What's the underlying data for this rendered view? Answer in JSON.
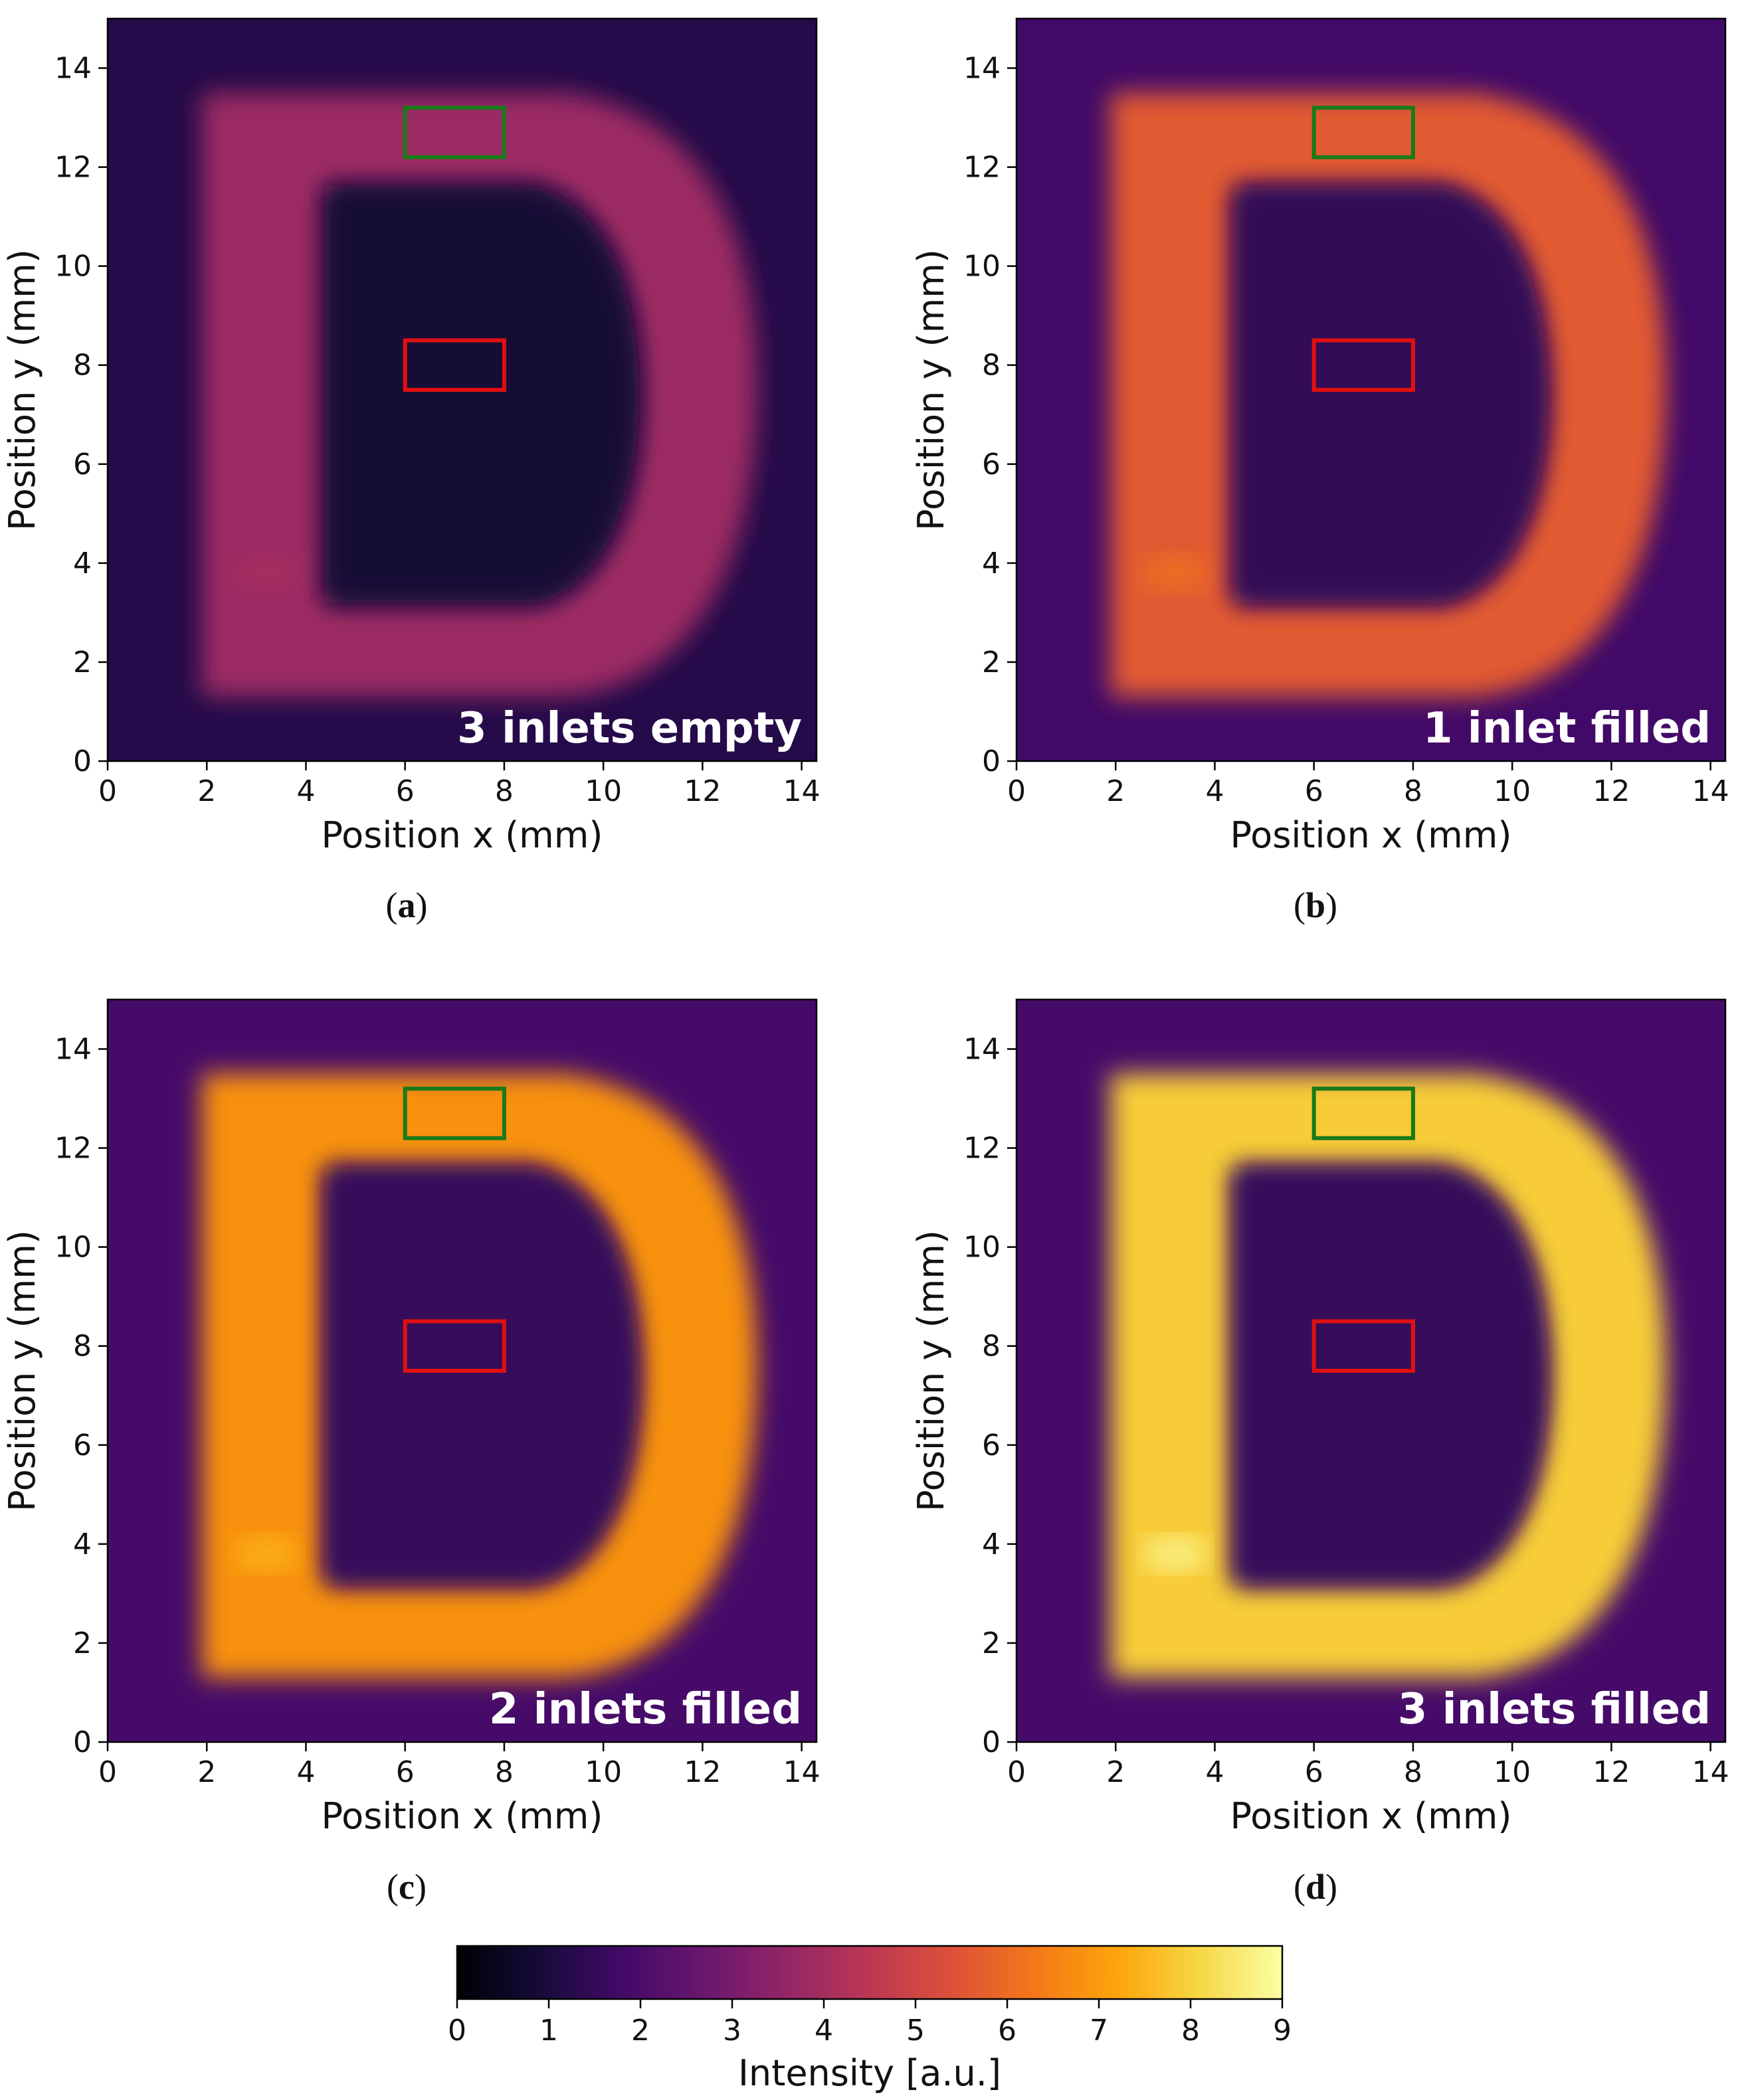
{
  "figure": {
    "panels": [
      {
        "id": "a",
        "caption": "a",
        "label": "3 inlets empty",
        "level": 0.42,
        "hotspot": 0.02
      },
      {
        "id": "b",
        "caption": "b",
        "label": "1 inlet filled",
        "level": 0.62,
        "hotspot": 0.05
      },
      {
        "id": "c",
        "caption": "c",
        "label": "2 inlets filled",
        "level": 0.76,
        "hotspot": 0.06
      },
      {
        "id": "d",
        "caption": "d",
        "label": "3 inlets filled",
        "level": 0.88,
        "hotspot": 0.08
      }
    ],
    "colorbar": {
      "label": "Intensity [a.u.]",
      "min": 0,
      "max": 9,
      "ticks": [
        0,
        1,
        2,
        3,
        4,
        5,
        6,
        7,
        8,
        9
      ],
      "colormap": "inferno"
    }
  },
  "chart_data": [
    {
      "type": "heatmap",
      "panel": "a",
      "annotation": "3 inlets empty",
      "xlabel": "Position x (mm)",
      "ylabel": "Position y (mm)",
      "xlim": [
        0,
        14.3
      ],
      "ylim": [
        0,
        15
      ],
      "xticks": [
        0,
        2,
        4,
        6,
        8,
        10,
        12,
        14
      ],
      "yticks": [
        0,
        2,
        4,
        6,
        8,
        10,
        12,
        14
      ],
      "letter_D_intensity": 3.8,
      "background_intensity": 1.2,
      "regions": [
        {
          "color": "green",
          "x": [
            6,
            8
          ],
          "y": [
            12.2,
            13.2
          ]
        },
        {
          "color": "red",
          "x": [
            6,
            8
          ],
          "y": [
            7.5,
            8.5
          ]
        }
      ]
    },
    {
      "type": "heatmap",
      "panel": "b",
      "annotation": "1 inlet filled",
      "xlabel": "Position x (mm)",
      "ylabel": "Position y (mm)",
      "xlim": [
        0,
        14.3
      ],
      "ylim": [
        0,
        15
      ],
      "xticks": [
        0,
        2,
        4,
        6,
        8,
        10,
        12,
        14
      ],
      "yticks": [
        0,
        2,
        4,
        6,
        8,
        10,
        12,
        14
      ],
      "letter_D_intensity": 5.6,
      "background_intensity": 1.8,
      "regions": [
        {
          "color": "green",
          "x": [
            6,
            8
          ],
          "y": [
            12.2,
            13.2
          ]
        },
        {
          "color": "red",
          "x": [
            6,
            8
          ],
          "y": [
            7.5,
            8.5
          ]
        }
      ]
    },
    {
      "type": "heatmap",
      "panel": "c",
      "annotation": "2 inlets filled",
      "xlabel": "Position x (mm)",
      "ylabel": "Position y (mm)",
      "xlim": [
        0,
        14.3
      ],
      "ylim": [
        0,
        15
      ],
      "xticks": [
        0,
        2,
        4,
        6,
        8,
        10,
        12,
        14
      ],
      "yticks": [
        0,
        2,
        4,
        6,
        8,
        10,
        12,
        14
      ],
      "letter_D_intensity": 6.8,
      "background_intensity": 1.9,
      "regions": [
        {
          "color": "green",
          "x": [
            6,
            8
          ],
          "y": [
            12.2,
            13.2
          ]
        },
        {
          "color": "red",
          "x": [
            6,
            8
          ],
          "y": [
            7.5,
            8.5
          ]
        }
      ]
    },
    {
      "type": "heatmap",
      "panel": "d",
      "annotation": "3 inlets filled",
      "xlabel": "Position x (mm)",
      "ylabel": "Position y (mm)",
      "xlim": [
        0,
        14.3
      ],
      "ylim": [
        0,
        15
      ],
      "xticks": [
        0,
        2,
        4,
        6,
        8,
        10,
        12,
        14
      ],
      "yticks": [
        0,
        2,
        4,
        6,
        8,
        10,
        12,
        14
      ],
      "letter_D_intensity": 7.9,
      "background_intensity": 1.9,
      "regions": [
        {
          "color": "green",
          "x": [
            6,
            8
          ],
          "y": [
            12.2,
            13.2
          ]
        },
        {
          "color": "red",
          "x": [
            6,
            8
          ],
          "y": [
            7.5,
            8.5
          ]
        }
      ]
    }
  ]
}
